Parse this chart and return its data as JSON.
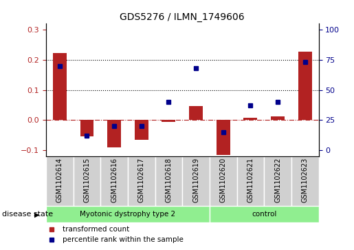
{
  "title": "GDS5276 / ILMN_1749606",
  "samples": [
    "GSM1102614",
    "GSM1102615",
    "GSM1102616",
    "GSM1102617",
    "GSM1102618",
    "GSM1102619",
    "GSM1102620",
    "GSM1102621",
    "GSM1102622",
    "GSM1102623"
  ],
  "red_values": [
    0.222,
    -0.055,
    -0.09,
    -0.065,
    -0.005,
    0.047,
    -0.115,
    0.008,
    0.012,
    0.228
  ],
  "blue_values_pct": [
    70,
    12,
    20,
    20,
    40,
    68,
    15,
    37,
    40,
    73
  ],
  "ylim_left": [
    -0.12,
    0.32
  ],
  "yticks_left": [
    -0.1,
    0.0,
    0.1,
    0.2,
    0.3
  ],
  "yticks_right": [
    0,
    25,
    50,
    75,
    100
  ],
  "bar_color": "#B22222",
  "dot_color": "#00008B",
  "hline_color": "#B22222",
  "legend_red": "transformed count",
  "legend_blue": "percentile rank within the sample",
  "disease_label": "disease state",
  "label_bg_color": "#d0d0d0",
  "group1_label": "Myotonic dystrophy type 2",
  "group2_label": "control",
  "group_color": "#90EE90",
  "n_group1": 6,
  "n_group2": 4
}
